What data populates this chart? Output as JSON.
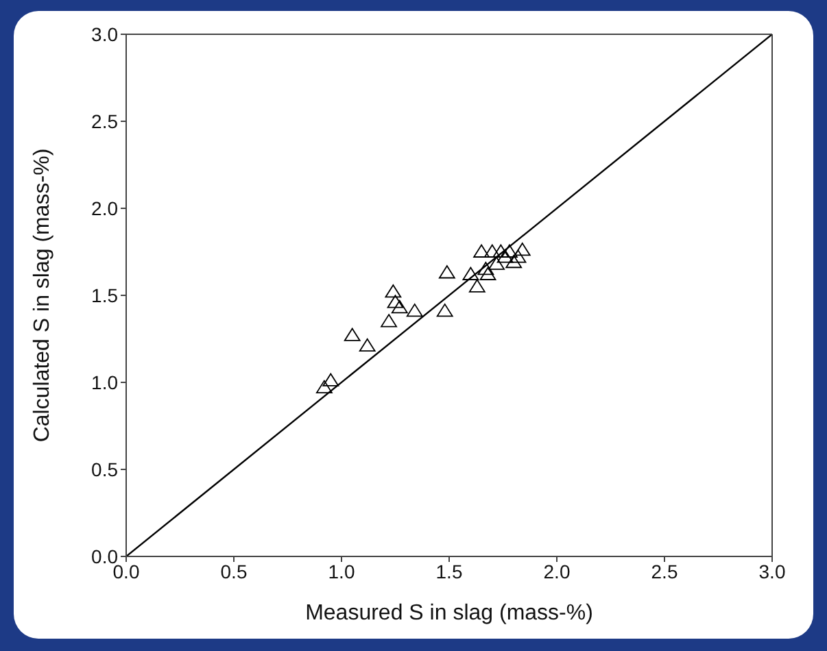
{
  "chart_data": {
    "type": "scatter",
    "xlabel": "Measured S in slag (mass-%)",
    "ylabel": "Calculated S in slag (mass-%)",
    "xlim": [
      0,
      3
    ],
    "ylim": [
      0,
      3
    ],
    "xticks": [
      {
        "value": 0,
        "label": "0.0"
      },
      0.5,
      {
        "value": 1,
        "label": "1.0"
      },
      1.5,
      {
        "value": 2,
        "label": "2.0"
      },
      2.5,
      {
        "value": 3,
        "label": "3.0"
      }
    ],
    "yticks": [
      {
        "value": 0,
        "label": "0.0"
      },
      0.5,
      {
        "value": 1,
        "label": "1.0"
      },
      1.5,
      {
        "value": 2,
        "label": "2.0"
      },
      2.5,
      {
        "value": 3,
        "label": "3.0"
      }
    ],
    "grid": false,
    "legend": false,
    "series": [
      {
        "color": "#000000",
        "marker": "triangle",
        "x": [
          0.92,
          0.95,
          1.05,
          1.12,
          1.22,
          1.24,
          1.25,
          1.27,
          1.34,
          1.48,
          1.49,
          1.6,
          1.63,
          1.65,
          1.67,
          1.68,
          1.7,
          1.72,
          1.74,
          1.76,
          1.78,
          1.8,
          1.82,
          1.84
        ],
        "values": [
          0.97,
          1.01,
          1.27,
          1.21,
          1.35,
          1.52,
          1.46,
          1.43,
          1.41,
          1.41,
          1.63,
          1.62,
          1.55,
          1.75,
          1.65,
          1.62,
          1.75,
          1.68,
          1.75,
          1.72,
          1.75,
          1.69,
          1.72,
          1.76
        ]
      },
      {
        "type": "line",
        "color": "#000000",
        "line_style": "solid",
        "x": [
          0,
          3
        ],
        "values": [
          0,
          3
        ]
      }
    ]
  }
}
